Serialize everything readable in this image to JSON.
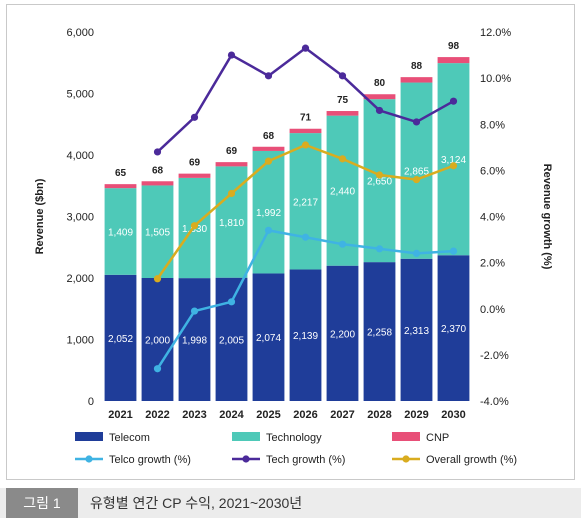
{
  "caption": {
    "label": "그림 1",
    "text": "유형별 연간 CP 수익, 2021~2030년"
  },
  "chart_data": {
    "type": "bar",
    "stacked": true,
    "categories": [
      "2021",
      "2022",
      "2023",
      "2024",
      "2025",
      "2026",
      "2027",
      "2028",
      "2029",
      "2030"
    ],
    "series": [
      {
        "name": "Telecom",
        "color": "#1f3d99",
        "values": [
          2052,
          2000,
          1998,
          2005,
          2074,
          2139,
          2200,
          2258,
          2313,
          2370
        ]
      },
      {
        "name": "Technology",
        "color": "#4ec9b8",
        "values": [
          1409,
          1505,
          1630,
          1810,
          1992,
          2217,
          2440,
          2650,
          2865,
          3124
        ]
      },
      {
        "name": "CNP",
        "color": "#e84f78",
        "values": [
          65,
          68,
          69,
          69,
          68,
          71,
          75,
          80,
          88,
          98
        ]
      }
    ],
    "lines": [
      {
        "name": "Telco growth (%)",
        "color": "#3fb3e3",
        "values": [
          null,
          -2.6,
          -0.1,
          0.3,
          3.4,
          3.1,
          2.8,
          2.6,
          2.4,
          2.5
        ]
      },
      {
        "name": "Tech growth (%)",
        "color": "#4b2a9a",
        "values": [
          null,
          6.8,
          8.3,
          11.0,
          10.1,
          11.3,
          10.1,
          8.6,
          8.1,
          9.0
        ]
      },
      {
        "name": "Overall growth (%)",
        "color": "#d9ac1f",
        "values": [
          null,
          1.3,
          3.6,
          5.0,
          6.4,
          7.1,
          6.5,
          5.8,
          5.6,
          6.2
        ]
      }
    ],
    "yleft": {
      "label": "Revenue ($bn)",
      "min": 0,
      "max": 6000,
      "ticks": [
        "0",
        "1,000",
        "2,000",
        "3,000",
        "4,000",
        "5,000",
        "6,000"
      ]
    },
    "yright": {
      "label": "Revenue growth (%)",
      "min": -4,
      "max": 12,
      "ticks": [
        "-4.0%",
        "-2.0%",
        "0.0%",
        "2.0%",
        "4.0%",
        "6.0%",
        "8.0%",
        "10.0%",
        "12.0%"
      ]
    },
    "legend_position": "bottom",
    "grid": false
  }
}
